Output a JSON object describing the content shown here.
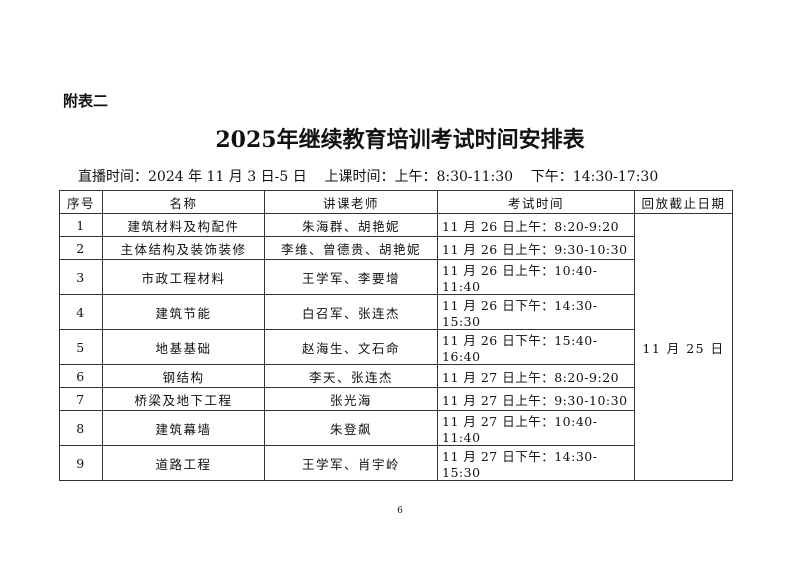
{
  "annex_label": "附表二",
  "title": "2025年继续教育培训考试时间安排表",
  "subtitle": "直播时间：2024 年 11 月 3 日-5 日    上课时间：上午：8:30-11:30    下午：14:30-17:30",
  "table": {
    "headers": [
      "序号",
      "名称",
      "讲课老师",
      "考试时间",
      "回放截止日期"
    ],
    "rows": [
      [
        "1",
        "建筑材料及构配件",
        "朱海群、胡艳妮",
        "11 月 26 日上午：8:20-9:20"
      ],
      [
        "2",
        "主体结构及装饰装修",
        "李维、曾德贵、胡艳妮",
        "11 月 26 日上午：9:30-10:30"
      ],
      [
        "3",
        "市政工程材料",
        "王学军、李要增",
        "11 月 26 日上午：10:40-11:40"
      ],
      [
        "4",
        "建筑节能",
        "白召军、张连杰",
        "11 月 26 日下午：14:30-15:30"
      ],
      [
        "5",
        "地基基础",
        "赵海生、文石命",
        "11 月 26 日下午：15:40-16:40"
      ],
      [
        "6",
        "钢结构",
        "李天、张连杰",
        "11 月 27 日上午：8:20-9:20"
      ],
      [
        "7",
        "桥梁及地下工程",
        "张光海",
        "11 月 27 日上午：9:30-10:30"
      ],
      [
        "8",
        "建筑幕墙",
        "朱登飙",
        "11 月 27 日上午：10:40-11:40"
      ],
      [
        "9",
        "道路工程",
        "王学军、肖宇岭",
        "11 月 27 日下午：14:30-15:30"
      ]
    ],
    "replay_deadline": "11 月 25 日"
  },
  "page_number": "6"
}
